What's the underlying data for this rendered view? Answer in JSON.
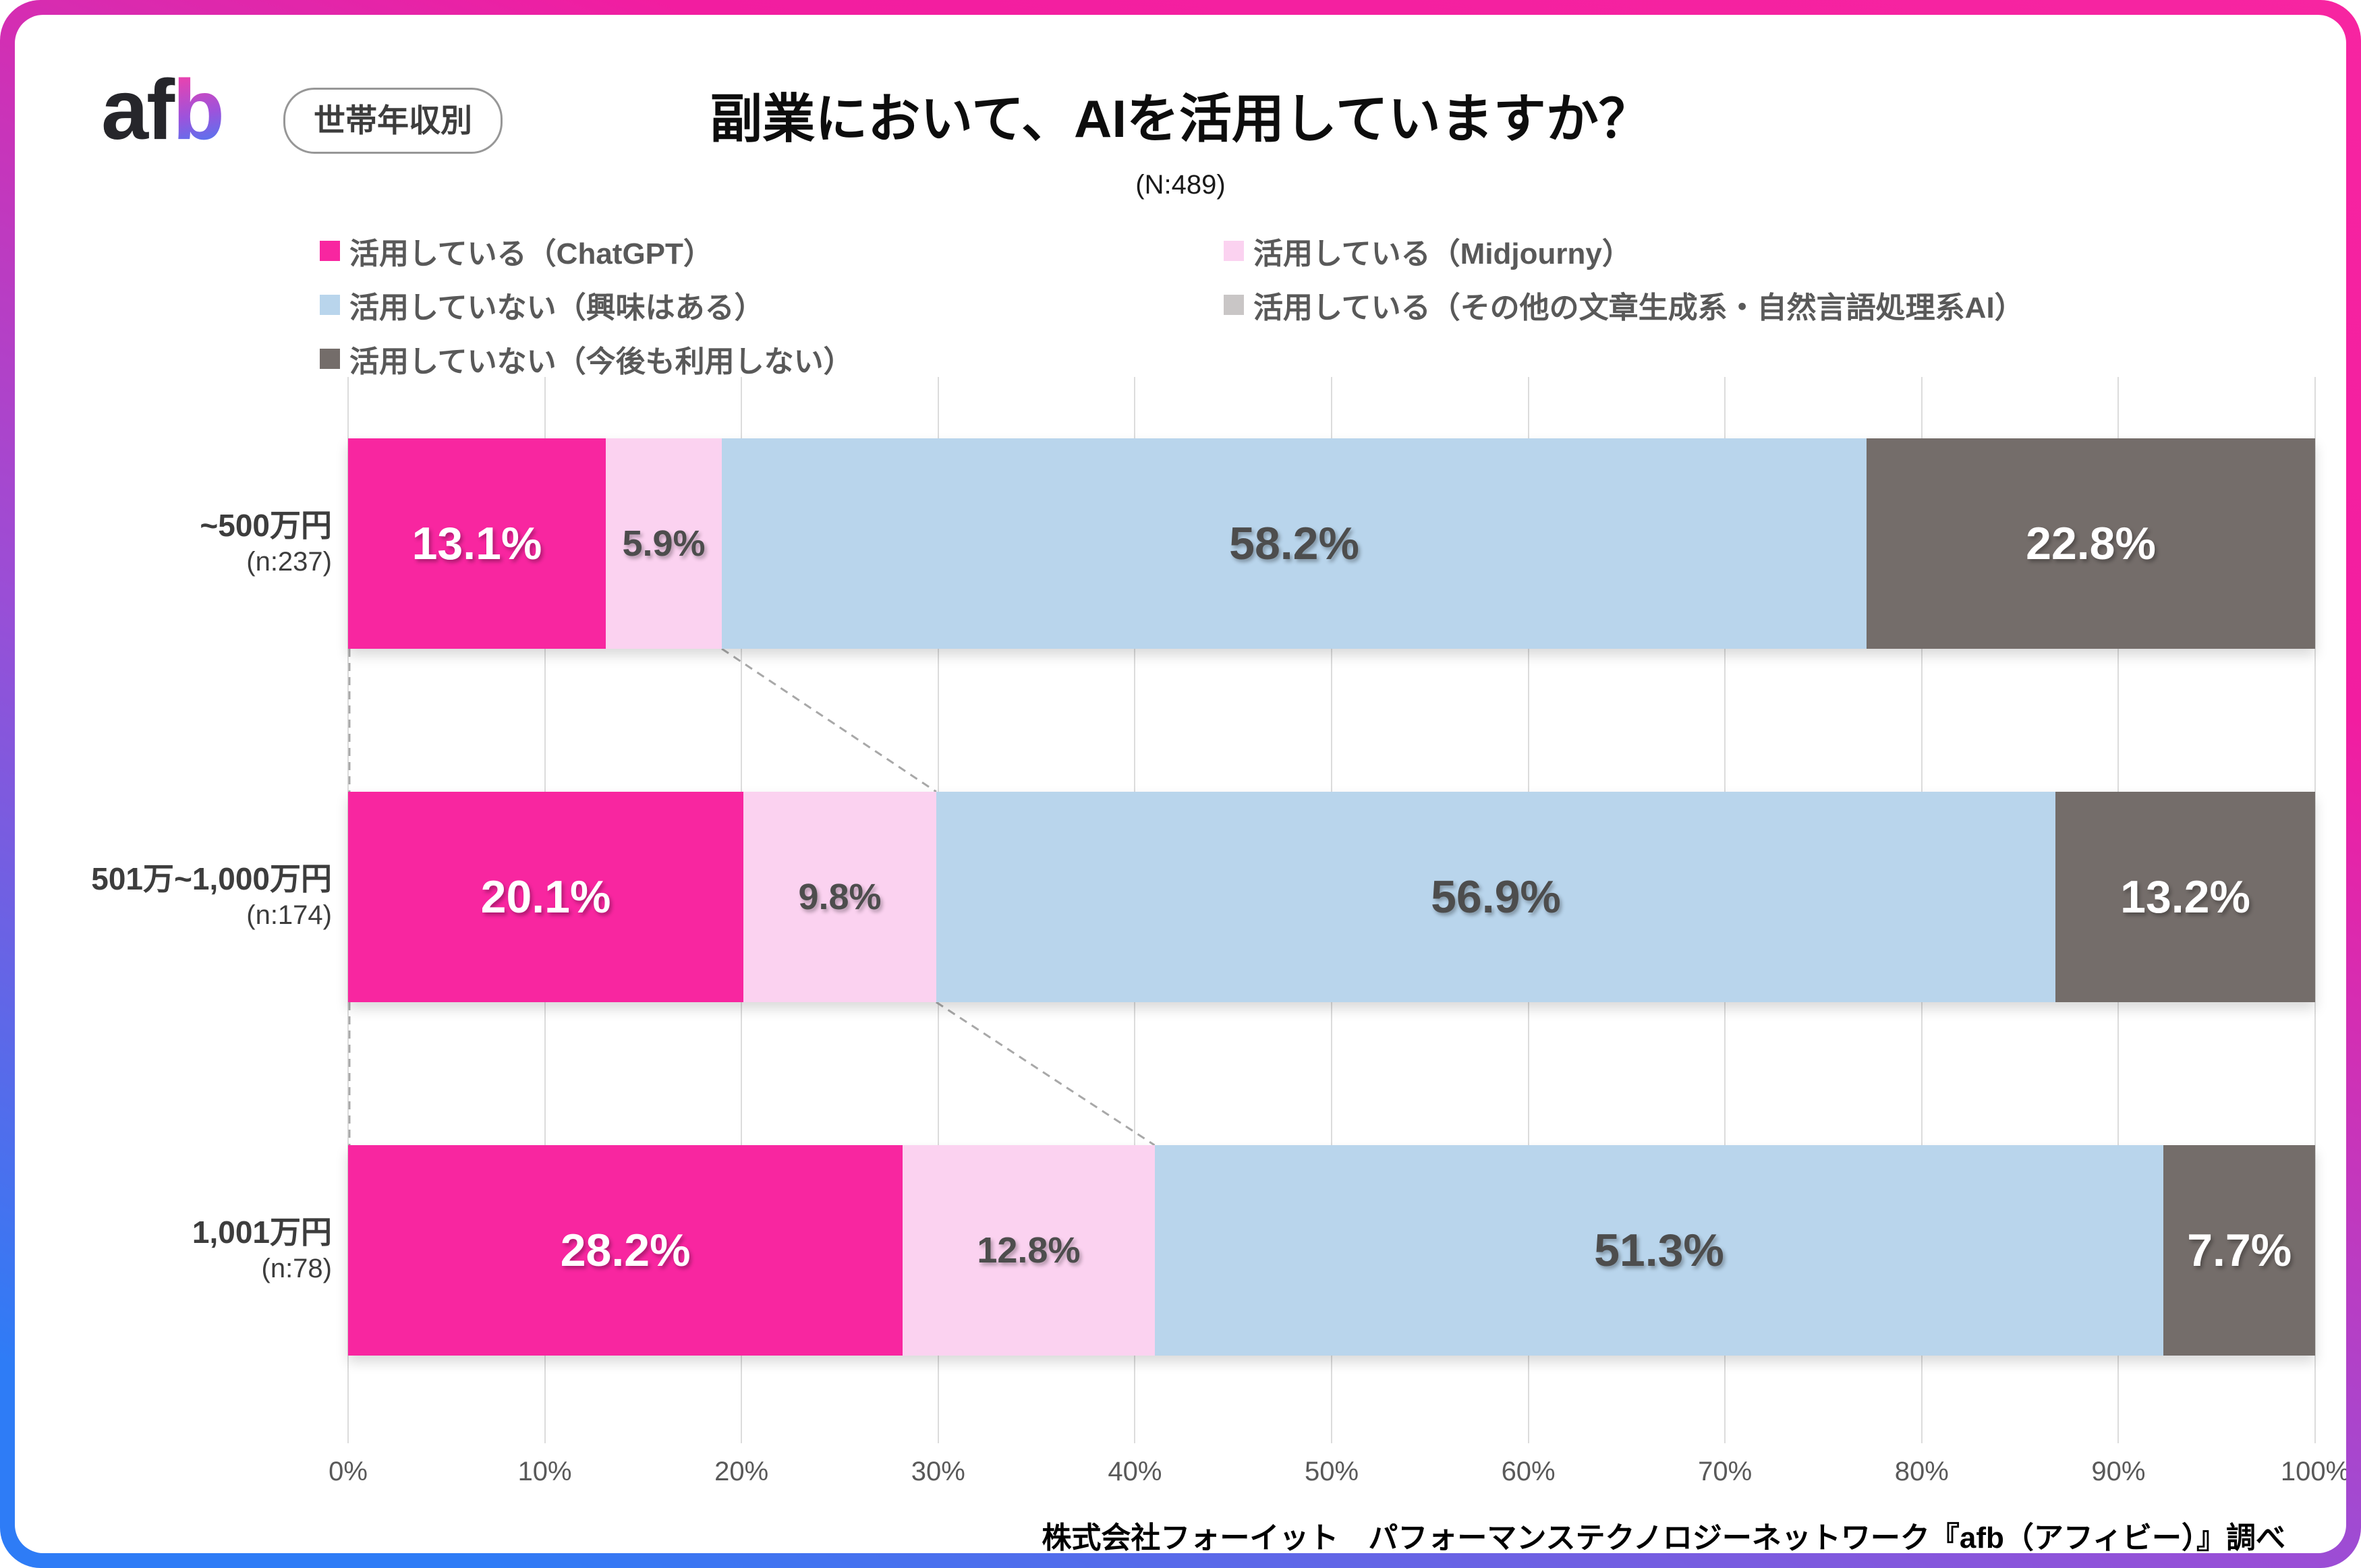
{
  "frame": {
    "border_gradient": [
      "#F21DA0",
      "#9A4ED6",
      "#2E7CF6"
    ]
  },
  "header": {
    "logo_af": "af",
    "logo_b": "b",
    "badge": "世帯年収別",
    "title": "副業において、AIを活用していますか？",
    "sample_size": "(N:489)"
  },
  "legend": {
    "items": [
      {
        "label": "活用している（ChatGPT）",
        "color": "#F826A0"
      },
      {
        "label": "活用している（Midjourny）",
        "color": "#FBD2F0"
      },
      {
        "label": "活用していない（興味はある）",
        "color": "#B9D5EC"
      },
      {
        "label": "活用している（その他の文章生成系・自然言語処理系AI）",
        "color": "#C9C6C6"
      },
      {
        "label": "活用していない（今後も利用しない）",
        "color": "#746D6A"
      }
    ]
  },
  "chart_data": {
    "type": "bar",
    "orientation": "horizontal",
    "stacked": true,
    "title": "副業において、AIを活用していますか？",
    "sample_size": "(N:489)",
    "xlim": [
      0,
      100
    ],
    "grid": true,
    "x_ticks": [
      "0%",
      "10%",
      "20%",
      "30%",
      "40%",
      "50%",
      "60%",
      "70%",
      "80%",
      "90%",
      "100%"
    ],
    "categories": [
      "~500万円",
      "501万~1,000万円",
      "1,001万円"
    ],
    "category_sublabels": [
      "(n:237)",
      "(n:174)",
      "(n:78)"
    ],
    "series": [
      {
        "name": "活用している（ChatGPT）",
        "color": "#F826A0",
        "label_color": "#ffffff",
        "values": [
          13.1,
          20.1,
          28.2
        ]
      },
      {
        "name": "活用している（Midjourny）",
        "color": "#FBD2F0",
        "label_color": "#4d4d4d",
        "values": [
          5.9,
          9.8,
          12.8
        ]
      },
      {
        "name": "活用していない（興味はある）",
        "color": "#B9D5EC",
        "label_color": "#4d4d4d",
        "values": [
          58.2,
          56.9,
          51.3
        ]
      },
      {
        "name": "活用している（その他の文章生成系・自然言語処理系AI）",
        "color": "#C9C6C6",
        "label_color": "#4d4d4d",
        "values": [
          0,
          0,
          0
        ]
      },
      {
        "name": "活用していない（今後も利用しない）",
        "color": "#746D6A",
        "label_color": "#ffffff",
        "values": [
          22.8,
          13.2,
          7.7
        ]
      }
    ],
    "value_label_format": "{v}%"
  },
  "footer": {
    "source": "株式会社フォーイット　パフォーマンステクノロジーネットワーク『afb（アフィビー）』調べ"
  }
}
